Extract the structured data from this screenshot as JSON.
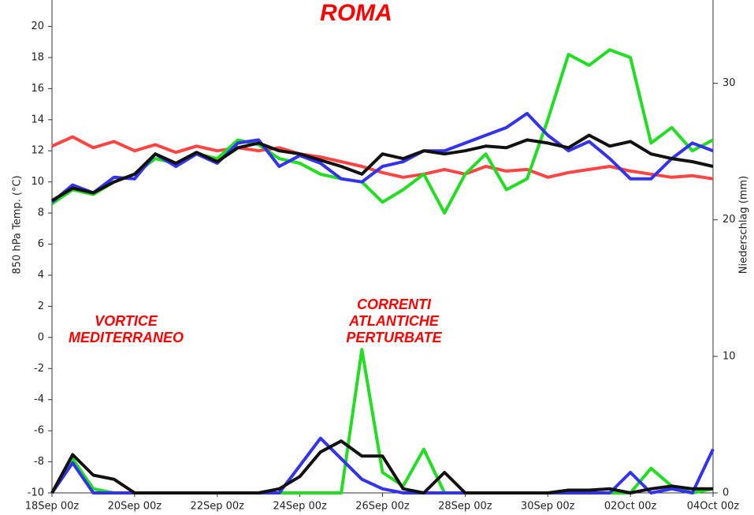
{
  "chart_data": {
    "type": "line",
    "title": "ROMA",
    "ylabel": "850 hPa Temp. (°C)",
    "y2label": "Niederschlag (mm)",
    "annotations": [
      {
        "lines": [
          "VORTICE",
          "MEDITERRANEO"
        ],
        "color": "#ff0000"
      },
      {
        "lines": [
          "CORRENTI",
          "ATLANTICHE",
          "PERTURBATE"
        ],
        "color": "#ff0000"
      }
    ],
    "x": [
      0,
      12,
      24,
      36,
      48,
      60,
      72,
      84,
      96,
      108,
      120,
      132,
      144,
      156,
      168,
      180,
      192,
      204,
      216,
      228,
      240,
      252,
      264,
      276,
      288,
      300,
      312,
      324,
      336,
      348,
      360,
      372,
      384
    ],
    "xlim": [
      0,
      384
    ],
    "xticks": [
      {
        "value": 0,
        "label": "18Sep 00z"
      },
      {
        "value": 48,
        "label": "20Sep 00z"
      },
      {
        "value": 96,
        "label": "22Sep 00z"
      },
      {
        "value": 144,
        "label": "24Sep 00z"
      },
      {
        "value": 192,
        "label": "26Sep 00z"
      },
      {
        "value": 240,
        "label": "28Sep 00z"
      },
      {
        "value": 288,
        "label": "30Sep 00z"
      },
      {
        "value": 336,
        "label": "02Oct 00z"
      },
      {
        "value": 384,
        "label": "04Oct 00z"
      }
    ],
    "ylim": [
      -10,
      21.7
    ],
    "yticks": [
      -10,
      -8,
      -6,
      -4,
      -2,
      0,
      2,
      4,
      6,
      8,
      10,
      12,
      14,
      16,
      18,
      20
    ],
    "y2lim": [
      0,
      36.1
    ],
    "y2ticks": [
      0,
      10,
      20,
      30
    ],
    "grid": false,
    "series": [
      {
        "color": "#ff4444",
        "width": 4,
        "values": [
          12.3,
          12.9,
          12.2,
          12.6,
          12.0,
          12.4,
          11.9,
          12.3,
          12.0,
          12.2,
          12.0,
          12.2,
          11.8,
          11.6,
          11.3,
          11.0,
          10.6,
          10.3,
          10.5,
          10.8,
          10.5,
          11.0,
          10.7,
          10.8,
          10.3,
          10.6,
          10.8,
          11.0,
          10.7,
          10.5,
          10.3,
          10.4,
          10.2
        ]
      },
      {
        "color": "#22dd22",
        "width": 4,
        "values": [
          8.6,
          9.5,
          9.2,
          10.0,
          10.5,
          11.5,
          11.2,
          11.8,
          11.5,
          12.7,
          12.4,
          11.5,
          11.2,
          10.5,
          10.2,
          10.0,
          8.7,
          9.5,
          10.5,
          8.0,
          10.5,
          11.8,
          9.5,
          10.2,
          14.0,
          18.2,
          17.5,
          18.5,
          18.0,
          12.5,
          13.5,
          12.0,
          12.7
        ]
      },
      {
        "color": "#3333ee",
        "width": 4,
        "values": [
          8.7,
          9.8,
          9.3,
          10.3,
          10.2,
          11.8,
          11.0,
          11.8,
          11.2,
          12.5,
          12.7,
          11.0,
          11.7,
          11.2,
          10.2,
          10.0,
          11.0,
          11.3,
          12.0,
          12.0,
          12.5,
          13.0,
          13.5,
          14.4,
          13.0,
          12.0,
          12.6,
          11.5,
          10.2,
          10.2,
          11.5,
          12.5,
          12.0
        ]
      },
      {
        "color": "#111111",
        "width": 4,
        "values": [
          8.8,
          9.6,
          9.3,
          10.0,
          10.5,
          11.8,
          11.2,
          11.9,
          11.3,
          12.2,
          12.5,
          12.0,
          11.8,
          11.4,
          11.0,
          10.5,
          11.8,
          11.5,
          12.0,
          11.8,
          12.0,
          12.3,
          12.2,
          12.7,
          12.5,
          12.2,
          13.0,
          12.3,
          12.6,
          11.8,
          11.5,
          11.3,
          11.0
        ]
      },
      {
        "color": "#22dd22",
        "width": 4,
        "axis": "y2",
        "values": [
          0,
          2.5,
          0.3,
          0,
          0,
          0,
          0,
          0,
          0,
          0,
          0,
          0,
          0,
          0,
          0,
          10.5,
          1.5,
          0.5,
          3.2,
          0,
          0,
          0,
          0,
          0,
          0,
          0,
          0,
          0,
          0,
          1.8,
          0.5,
          0,
          0.3
        ]
      },
      {
        "color": "#3333ee",
        "width": 4,
        "axis": "y2",
        "values": [
          0,
          2.2,
          0,
          0,
          0,
          0,
          0,
          0,
          0,
          0,
          0,
          0,
          2.0,
          4.0,
          2.5,
          1.0,
          0.3,
          0,
          0,
          0,
          0,
          0,
          0,
          0,
          0,
          0,
          0,
          0,
          1.5,
          0,
          0.3,
          0,
          3.2
        ]
      },
      {
        "color": "#111111",
        "width": 4,
        "axis": "y2",
        "values": [
          0,
          2.8,
          1.3,
          1.0,
          0,
          0,
          0,
          0,
          0,
          0,
          0,
          0.3,
          1.2,
          3.0,
          3.8,
          2.7,
          2.7,
          0.3,
          0,
          1.5,
          0,
          0,
          0,
          0,
          0,
          0.2,
          0.2,
          0.3,
          0,
          0.3,
          0.5,
          0.3,
          0.3
        ]
      }
    ]
  }
}
